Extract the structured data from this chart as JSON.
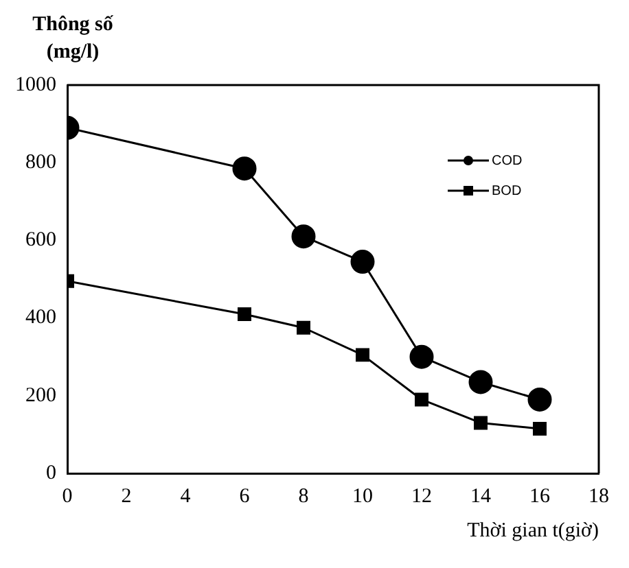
{
  "chart_data": {
    "type": "line",
    "ylabel": "Thông số (mg/l)",
    "xlabel": "Thời gian t(giờ)",
    "x": [
      0,
      6,
      8,
      10,
      12,
      14,
      16
    ],
    "series": [
      {
        "name": "COD",
        "color": "#000000",
        "marker": "circle",
        "values": [
          890,
          785,
          610,
          545,
          300,
          235,
          190
        ]
      },
      {
        "name": "BOD",
        "color": "#000000",
        "marker": "square",
        "values": [
          495,
          410,
          375,
          305,
          190,
          130,
          115
        ]
      }
    ],
    "xlim": [
      0,
      18
    ],
    "xticks": [
      0,
      2,
      4,
      6,
      8,
      10,
      12,
      14,
      16,
      18
    ],
    "ylim": [
      0,
      1000
    ],
    "yticks": [
      0,
      200,
      400,
      600,
      800,
      {
        "value": 1000,
        "label": "1000"
      }
    ],
    "grid": false,
    "legend": "top right",
    "line_style": "solid"
  }
}
